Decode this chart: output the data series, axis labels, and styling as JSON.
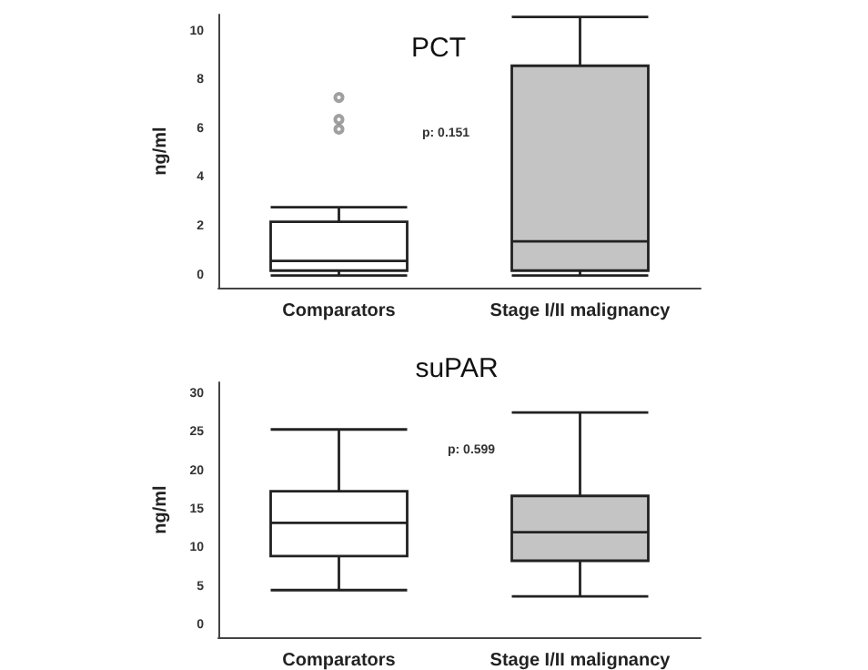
{
  "chart_data": [
    {
      "type": "box",
      "title": "PCT",
      "ylabel": "ng/ml",
      "categories": [
        "Comparators",
        "Stage I/II malignancy"
      ],
      "colors": [
        "#ffffff",
        "#c4c4c4"
      ],
      "boxes": [
        {
          "low": 0,
          "q1": 0.2,
          "median": 0.6,
          "q3": 2.2,
          "high": 2.8,
          "outliers": [
            7.3,
            6.4,
            6.0
          ]
        },
        {
          "low": 0,
          "q1": 0.2,
          "median": 1.4,
          "q3": 8.6,
          "high": 10.6
        }
      ],
      "ylim": [
        -0.5,
        10.7
      ],
      "yticks": [
        0,
        2,
        4,
        6,
        8,
        10
      ],
      "grid": false,
      "annotations": [
        "p: 0.151"
      ]
    },
    {
      "type": "box",
      "title": "suPAR",
      "ylabel": "ng/ml",
      "categories": [
        "Comparators",
        "Stage I/II malignancy"
      ],
      "colors": [
        "#ffffff",
        "#c4c4c4"
      ],
      "boxes": [
        {
          "low": 4.6,
          "q1": 9.0,
          "median": 13.3,
          "q3": 17.4,
          "high": 25.4
        },
        {
          "low": 3.8,
          "q1": 8.4,
          "median": 12.1,
          "q3": 16.8,
          "high": 27.6
        }
      ],
      "ylim": [
        -1.5,
        31.5
      ],
      "yticks": [
        0,
        5,
        10,
        15,
        20,
        25,
        30
      ],
      "grid": false,
      "annotations": [
        "p: 0.599"
      ]
    }
  ]
}
